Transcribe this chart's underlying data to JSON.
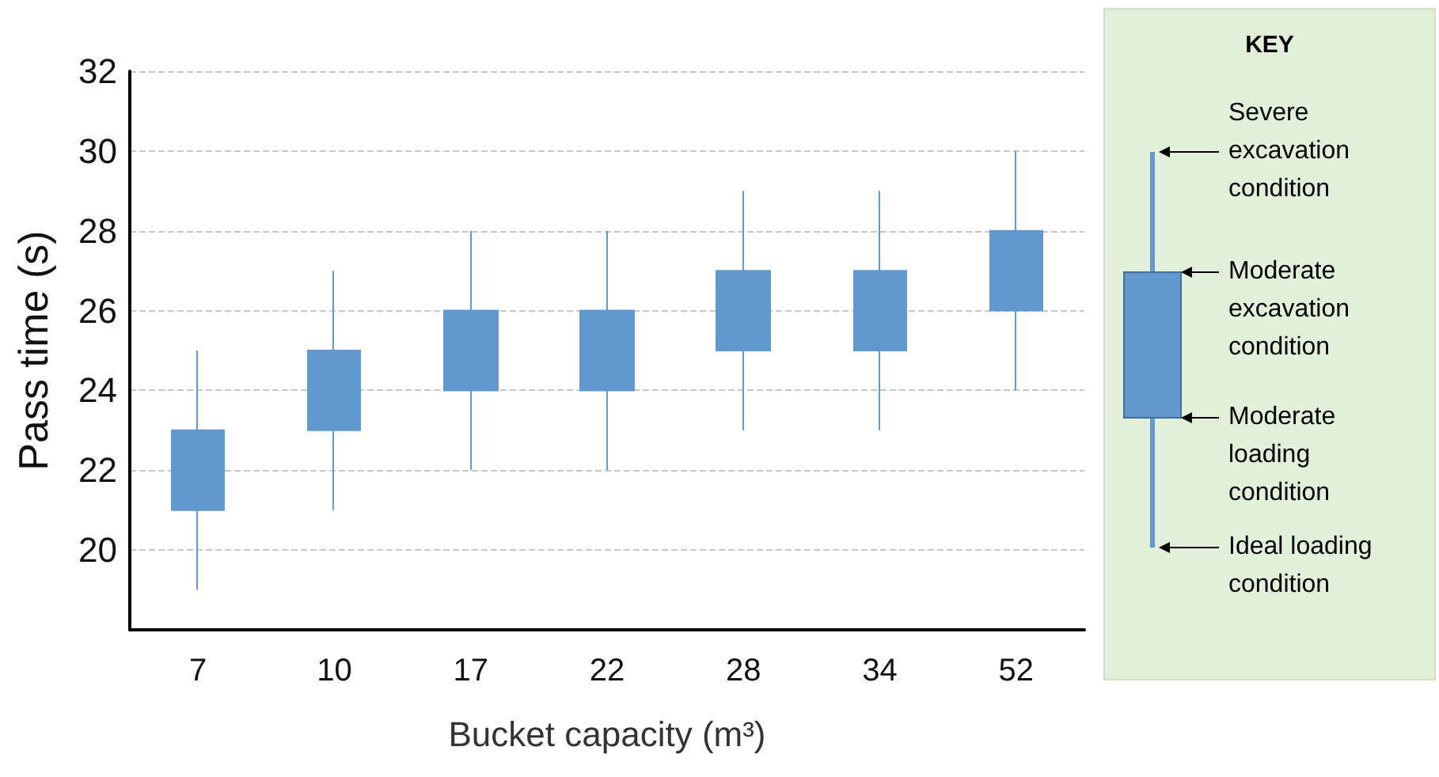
{
  "chart_data": {
    "type": "candlestick",
    "xlabel": "Bucket capacity (m³)",
    "ylabel": "Pass time (s)",
    "categories": [
      "7",
      "10",
      "17",
      "22",
      "28",
      "34",
      "52"
    ],
    "ohlc": [
      [
        21,
        25,
        19,
        23
      ],
      [
        23,
        27,
        21,
        25
      ],
      [
        24,
        28,
        22,
        26
      ],
      [
        24,
        28,
        22,
        26
      ],
      [
        25,
        29,
        23,
        27
      ],
      [
        25,
        29,
        23,
        27
      ],
      [
        26,
        30,
        24,
        28
      ]
    ],
    "color": "#6199cf",
    "ylim": [
      18,
      32
    ],
    "yticks": [
      20,
      22,
      24,
      26,
      28,
      30,
      32
    ],
    "grid": "y",
    "annotations": [
      "KEY",
      "Severe excavation condition",
      "Moderate excavation condition",
      "Moderate loading condition",
      "Ideal loading condition"
    ]
  }
}
